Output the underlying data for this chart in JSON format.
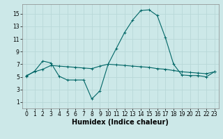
{
  "title": "",
  "xlabel": "Humidex (Indice chaleur)",
  "ylabel": "",
  "xlim": [
    -0.5,
    23.5
  ],
  "ylim": [
    0,
    16.5
  ],
  "yticks": [
    1,
    3,
    5,
    7,
    9,
    11,
    13,
    15
  ],
  "xticks": [
    0,
    1,
    2,
    3,
    4,
    5,
    6,
    7,
    8,
    9,
    10,
    11,
    12,
    13,
    14,
    15,
    16,
    17,
    18,
    19,
    20,
    21,
    22,
    23
  ],
  "bg_color": "#cce8e8",
  "grid_color": "#b8d8d8",
  "line_color": "#006666",
  "line1_x": [
    0,
    1,
    2,
    3,
    4,
    5,
    6,
    7,
    8,
    9,
    10,
    11,
    12,
    13,
    14,
    15,
    16,
    17,
    18,
    19,
    20,
    21,
    22,
    23
  ],
  "line1_y": [
    5.1,
    5.9,
    7.5,
    7.2,
    5.1,
    4.5,
    4.5,
    4.5,
    1.5,
    2.8,
    7.0,
    9.5,
    12.0,
    14.0,
    15.5,
    15.6,
    14.7,
    11.2,
    7.0,
    5.3,
    5.2,
    5.2,
    5.0,
    5.8
  ],
  "line2_x": [
    0,
    1,
    2,
    3,
    4,
    5,
    6,
    7,
    8,
    9,
    10,
    11,
    12,
    13,
    14,
    15,
    16,
    17,
    18,
    19,
    20,
    21,
    22,
    23
  ],
  "line2_y": [
    5.2,
    5.8,
    6.2,
    6.8,
    6.7,
    6.6,
    6.5,
    6.4,
    6.3,
    6.7,
    7.0,
    6.9,
    6.8,
    6.7,
    6.6,
    6.5,
    6.3,
    6.2,
    6.0,
    5.8,
    5.7,
    5.6,
    5.5,
    5.8
  ],
  "tick_fontsize": 5.5,
  "xlabel_fontsize": 7
}
